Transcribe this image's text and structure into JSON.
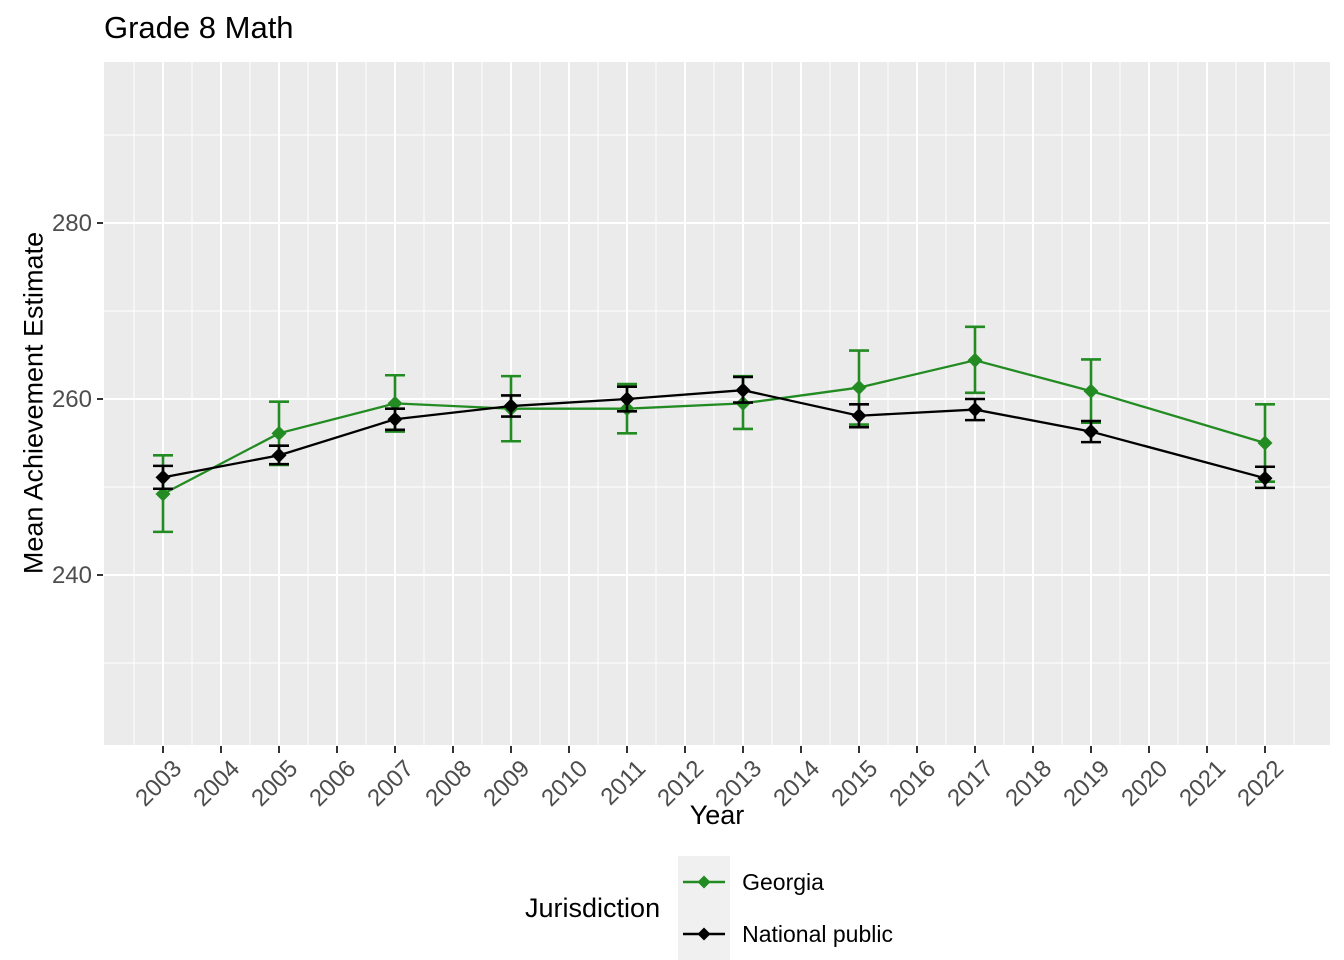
{
  "chart_data": {
    "type": "line",
    "title": "Grade 8 Math",
    "xlabel": "Year",
    "ylabel": "Mean Achievement Estimate",
    "legend_title": "Jurisdiction",
    "legend_position": "bottom",
    "grid": true,
    "panel_bg": "#EBEBEB",
    "grid_color": "#FFFFFF",
    "tick_text_color": "#4D4D4D",
    "x_ticks": [
      2003,
      2004,
      2005,
      2006,
      2007,
      2008,
      2009,
      2010,
      2011,
      2012,
      2013,
      2014,
      2015,
      2016,
      2017,
      2018,
      2019,
      2020,
      2021,
      2022
    ],
    "y_ticks": [
      240,
      260,
      280
    ],
    "y_minor_ticks": [
      230,
      250,
      270,
      290
    ],
    "xlim": [
      2002,
      2023.1
    ],
    "ylim": [
      220.7,
      298.3
    ],
    "x": [
      2003,
      2005,
      2007,
      2009,
      2011,
      2013,
      2015,
      2017,
      2019,
      2022
    ],
    "series": [
      {
        "name": "Georgia",
        "color": "#228B22",
        "marker": "diamond",
        "values": [
          249.2,
          256.1,
          259.5,
          258.9,
          258.9,
          259.5,
          261.3,
          264.4,
          260.9,
          255.0
        ],
        "ci_low": [
          244.9,
          252.5,
          256.3,
          255.2,
          256.1,
          256.6,
          257.1,
          260.7,
          257.3,
          250.6
        ],
        "ci_high": [
          253.6,
          259.7,
          262.7,
          262.6,
          261.7,
          262.6,
          265.5,
          268.2,
          264.5,
          259.4
        ]
      },
      {
        "name": "National public",
        "color": "#000000",
        "marker": "diamond",
        "values": [
          251.1,
          253.6,
          257.7,
          259.2,
          260.0,
          261.0,
          258.1,
          258.8,
          256.3,
          251.0
        ],
        "ci_low": [
          249.8,
          252.6,
          256.5,
          258.0,
          258.6,
          259.6,
          256.8,
          257.6,
          255.1,
          249.9
        ],
        "ci_high": [
          252.4,
          254.7,
          258.9,
          260.4,
          261.4,
          262.5,
          259.4,
          260.0,
          257.5,
          252.3
        ]
      }
    ]
  }
}
